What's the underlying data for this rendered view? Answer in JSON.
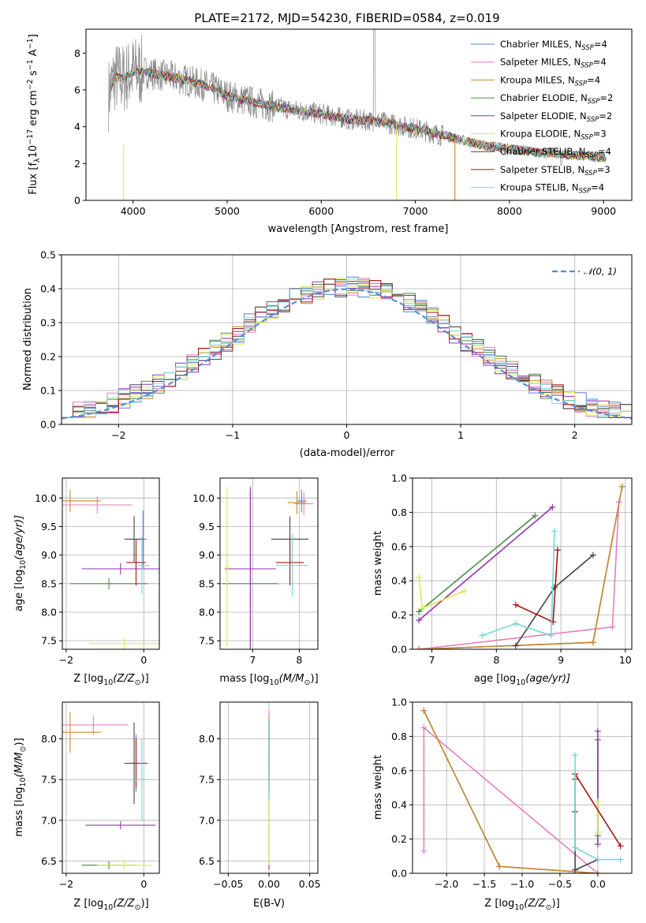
{
  "figure": {
    "title": "PLATE=2172, MJD=54230, FIBERID=0584, z=0.019"
  },
  "colors": {
    "Chabrier MILES": "#5b7fd9",
    "Salpeter MILES": "#e37fbf",
    "Kroupa MILES": "#c98a2a",
    "Chabrier ELODIE": "#4f8a4f",
    "Salpeter ELODIE": "#9a2fb5",
    "Kroupa ELODIE": "#d8ea4a",
    "Chabrier STELIB": "#454545",
    "Salpeter STELIB": "#a81414",
    "Kroupa STELIB": "#76d7db",
    "data": "#888888",
    "gauss": "#5b8bd9"
  },
  "chart_data": [
    {
      "id": "spectrum",
      "type": "line",
      "xlabel": "wavelength [Angstrom, rest frame]",
      "ylabel": "Flux [f",
      "ylabel_sub": "λ",
      "ylabel_rest": "10",
      "ylabel_sup": "−17",
      "ylabel_tail": " erg cm",
      "ylabel_sup2": "−2",
      "ylabel_mid": " s",
      "ylabel_sup3": "−1",
      "ylabel_end": " A",
      "ylabel_sup4": "−1",
      "ylabel_close": "]",
      "xlim": [
        3500,
        9300
      ],
      "ylim": [
        0,
        9.3
      ],
      "xticks": [
        4000,
        5000,
        6000,
        7000,
        8000,
        9000
      ],
      "yticks": [
        0,
        2,
        4,
        6,
        8
      ],
      "grid": false,
      "legend_position": "top-right",
      "continuum_x": [
        3750,
        3800,
        3900,
        4000,
        4100,
        4300,
        4500,
        4800,
        5000,
        5300,
        5600,
        6000,
        6300,
        6600,
        7000,
        7400,
        7700,
        8000,
        8300,
        8600,
        8800,
        9000
      ],
      "continuum_y": [
        5.9,
        6.7,
        6.6,
        7.0,
        7.0,
        6.8,
        6.6,
        6.2,
        5.7,
        5.3,
        5.0,
        4.7,
        4.4,
        4.3,
        3.9,
        3.4,
        3.0,
        2.8,
        2.6,
        2.5,
        2.4,
        2.35
      ],
      "legend": [
        {
          "name": "Chabrier MILES, N",
          "sub": "SSP",
          "tail": "=4"
        },
        {
          "name": "Salpeter MILES, N",
          "sub": "SSP",
          "tail": "=4"
        },
        {
          "name": "Kroupa MILES, N",
          "sub": "SSP",
          "tail": "=4"
        },
        {
          "name": "Chabrier ELODIE, N",
          "sub": "SSP",
          "tail": "=2"
        },
        {
          "name": "Salpeter ELODIE, N",
          "sub": "SSP",
          "tail": "=2"
        },
        {
          "name": "Kroupa ELODIE, N",
          "sub": "SSP",
          "tail": "=3"
        },
        {
          "name": "Chabrier STELIB, N",
          "sub": "SSP",
          "tail": "=4"
        },
        {
          "name": "Salpeter STELIB, N",
          "sub": "SSP",
          "tail": "=3"
        },
        {
          "name": "Kroupa STELIB, N",
          "sub": "SSP",
          "tail": "=4"
        }
      ]
    },
    {
      "id": "residuals",
      "type": "line",
      "xlabel": "(data-model)/error",
      "ylabel": "Normed distribution",
      "xlim": [
        -2.5,
        2.5
      ],
      "ylim": [
        0,
        0.5
      ],
      "xticks": [
        -2,
        -1,
        0,
        1,
        2
      ],
      "yticks": [
        0.0,
        0.1,
        0.2,
        0.3,
        0.4,
        0.5
      ],
      "grid": true,
      "legend_position": "top-right",
      "legend_label": "𝒩(0, 1)"
    },
    {
      "id": "age_vs_Z",
      "type": "scatter",
      "xlabel": "Z [log",
      "xlabel_sub": "10",
      "xlabel_tail": "(Z/Z",
      "xlabel_sub2": "⊙",
      "xlabel_close": ")]",
      "ylabel": "age  [log",
      "ylabel_sub": "10",
      "ylabel_tail": "(age/yr)]",
      "xlim": [
        -2.1,
        0.4
      ],
      "ylim": [
        7.35,
        10.35
      ],
      "xticks": [
        -2,
        0
      ],
      "yticks": [
        7.5,
        8.0,
        8.5,
        9.0,
        9.5,
        10.0
      ],
      "grid": true,
      "points": [
        {
          "model": "Chabrier MILES",
          "x": -0.02,
          "y": 9.28,
          "xerr": 0.1,
          "yerr": 0.5
        },
        {
          "model": "Salpeter MILES",
          "x": -1.2,
          "y": 9.88,
          "xerr": 0.9,
          "yerr": 0.15
        },
        {
          "model": "Kroupa MILES",
          "x": -1.9,
          "y": 9.95,
          "xerr": 0.8,
          "yerr": 0.2
        },
        {
          "model": "Chabrier ELODIE",
          "x": -0.9,
          "y": 8.5,
          "xerr": 1.0,
          "yerr": 0.1
        },
        {
          "model": "Salpeter ELODIE",
          "x": -0.6,
          "y": 8.76,
          "xerr": 1.0,
          "yerr": 0.1
        },
        {
          "model": "Kroupa ELODIE",
          "x": -0.5,
          "y": 7.45,
          "xerr": 0.9,
          "yerr": 0.1
        },
        {
          "model": "Chabrier STELIB",
          "x": -0.25,
          "y": 9.28,
          "xerr": 0.25,
          "yerr": 0.4
        },
        {
          "model": "Salpeter STELIB",
          "x": -0.2,
          "y": 8.87,
          "xerr": 0.25,
          "yerr": 0.4
        },
        {
          "model": "Kroupa STELIB",
          "x": -0.05,
          "y": 8.82,
          "xerr": 0.2,
          "yerr": 0.5
        }
      ]
    },
    {
      "id": "age_vs_mass",
      "type": "scatter",
      "xlabel": "mass [log",
      "xlabel_sub": "10",
      "xlabel_tail": "(M/M",
      "xlabel_sub2": "⊙",
      "xlabel_close": ")]",
      "xlim": [
        6.3,
        8.4
      ],
      "ylim": [
        7.35,
        10.35
      ],
      "xticks": [
        7,
        8
      ],
      "yticks": [
        7.5,
        8.0,
        8.5,
        9.0,
        9.5,
        10.0
      ],
      "grid": true,
      "points": [
        {
          "model": "Chabrier MILES",
          "x": 8.05,
          "y": 9.95,
          "xerr": 0.1,
          "yerr": 0.2
        },
        {
          "model": "Salpeter MILES",
          "x": 8.1,
          "y": 9.9,
          "xerr": 0.2,
          "yerr": 0.2
        },
        {
          "model": "Kroupa MILES",
          "x": 7.95,
          "y": 9.92,
          "xerr": 0.2,
          "yerr": 0.2
        },
        {
          "model": "Chabrier ELODIE",
          "x": 6.95,
          "y": 8.5,
          "xerr": 0.6,
          "yerr": 1.7
        },
        {
          "model": "Salpeter ELODIE",
          "x": 6.95,
          "y": 8.76,
          "xerr": 0.55,
          "yerr": 1.4
        },
        {
          "model": "Kroupa ELODIE",
          "x": 6.45,
          "y": 8.8,
          "xerr": 0.05,
          "yerr": 1.4
        },
        {
          "model": "Chabrier STELIB",
          "x": 7.8,
          "y": 9.28,
          "xerr": 0.4,
          "yerr": 0.4
        },
        {
          "model": "Salpeter STELIB",
          "x": 7.8,
          "y": 8.87,
          "xerr": 0.3,
          "yerr": 0.4
        },
        {
          "model": "Kroupa STELIB",
          "x": 7.85,
          "y": 8.82,
          "xerr": 0.35,
          "yerr": 0.55
        }
      ]
    },
    {
      "id": "weight_vs_age",
      "type": "line",
      "xlabel": "age  [log",
      "xlabel_sub": "10",
      "xlabel_tail": "(age/yr)]",
      "ylabel": "mass weight",
      "xlim": [
        6.7,
        10.1
      ],
      "ylim": [
        0,
        1.0
      ],
      "xticks": [
        7,
        8,
        9,
        10
      ],
      "yticks": [
        0.0,
        0.2,
        0.4,
        0.6,
        0.8,
        1.0
      ],
      "grid": true,
      "series": [
        {
          "model": "Chabrier MILES",
          "x": [
            6.8,
            9.5,
            9.95
          ],
          "y": [
            0.0,
            0.04,
            0.95
          ]
        },
        {
          "model": "Salpeter MILES",
          "x": [
            6.8,
            9.8,
            9.9
          ],
          "y": [
            0.0,
            0.13,
            0.86
          ]
        },
        {
          "model": "Kroupa MILES",
          "x": [
            6.8,
            9.5,
            9.95
          ],
          "y": [
            0.0,
            0.04,
            0.95
          ]
        },
        {
          "model": "Chabrier ELODIE",
          "x": [
            6.8,
            8.6
          ],
          "y": [
            0.22,
            0.78
          ]
        },
        {
          "model": "Salpeter ELODIE",
          "x": [
            6.8,
            8.87
          ],
          "y": [
            0.17,
            0.83
          ]
        },
        {
          "model": "Kroupa ELODIE",
          "x": [
            6.8,
            6.85,
            7.5
          ],
          "y": [
            0.42,
            0.24,
            0.34
          ]
        },
        {
          "model": "Chabrier STELIB",
          "x": [
            8.3,
            8.9,
            9.5
          ],
          "y": [
            0.02,
            0.36,
            0.55
          ]
        },
        {
          "model": "Salpeter STELIB",
          "x": [
            8.3,
            8.88,
            8.95
          ],
          "y": [
            0.26,
            0.16,
            0.58
          ]
        },
        {
          "model": "Kroupa STELIB",
          "x": [
            7.78,
            8.3,
            8.85,
            8.9
          ],
          "y": [
            0.08,
            0.15,
            0.08,
            0.69
          ]
        }
      ]
    },
    {
      "id": "mass_vs_Z",
      "type": "scatter",
      "xlabel": "Z [log",
      "xlabel_sub": "10",
      "xlabel_tail": "(Z/Z",
      "xlabel_sub2": "⊙",
      "xlabel_close": ")]",
      "ylabel": "mass [log",
      "ylabel_sub": "10",
      "ylabel_tail": "(M/M",
      "ylabel_sub2": "⊙",
      "ylabel_close": ")]",
      "xlim": [
        -2.1,
        0.4
      ],
      "ylim": [
        6.35,
        8.45
      ],
      "xticks": [
        -2,
        0
      ],
      "yticks": [
        6.5,
        7.0,
        7.5,
        8.0
      ],
      "grid": true,
      "points": [
        {
          "model": "Chabrier MILES",
          "x": -0.2,
          "y": 7.7,
          "xerr": 0.1,
          "yerr": 0.35
        },
        {
          "model": "Salpeter MILES",
          "x": -1.3,
          "y": 8.17,
          "xerr": 0.9,
          "yerr": 0.12
        },
        {
          "model": "Kroupa MILES",
          "x": -1.9,
          "y": 8.08,
          "xerr": 0.8,
          "yerr": 0.25
        },
        {
          "model": "Chabrier ELODIE",
          "x": -0.9,
          "y": 6.45,
          "xerr": 0.7,
          "yerr": 0.05
        },
        {
          "model": "Salpeter ELODIE",
          "x": -0.6,
          "y": 6.94,
          "xerr": 0.9,
          "yerr": 0.05
        },
        {
          "model": "Kroupa ELODIE",
          "x": -0.5,
          "y": 6.45,
          "xerr": 0.7,
          "yerr": 0.05
        },
        {
          "model": "Chabrier STELIB",
          "x": -0.25,
          "y": 7.7,
          "xerr": 0.2,
          "yerr": 0.5
        },
        {
          "model": "Salpeter STELIB",
          "x": -0.2,
          "y": 7.7,
          "xerr": 0.3,
          "yerr": 0.3
        },
        {
          "model": "Kroupa STELIB",
          "x": -0.05,
          "y": 7.5,
          "xerr": 0.2,
          "yerr": 0.5
        }
      ]
    },
    {
      "id": "mass_vs_ebv",
      "type": "scatter",
      "xlabel": "E(B-V)",
      "xlim": [
        -0.06,
        0.06
      ],
      "ylim": [
        6.35,
        8.45
      ],
      "xticks": [
        -0.05,
        0.0,
        0.05
      ],
      "xtick_labels": [
        "−0.05",
        "0.00",
        "0.05"
      ],
      "yticks": [
        6.5,
        7.0,
        7.5,
        8.0
      ],
      "grid": true,
      "points": [
        {
          "model": "Chabrier MILES",
          "x": 0.0,
          "y": 7.9,
          "xerr": 0.0,
          "yerr": 0.4
        },
        {
          "model": "Salpeter MILES",
          "x": 0.0,
          "y": 7.95,
          "xerr": 0.0,
          "yerr": 0.4
        },
        {
          "model": "Kroupa MILES",
          "x": 0.0,
          "y": 7.9,
          "xerr": 0.0,
          "yerr": 0.4
        },
        {
          "model": "Chabrier ELODIE",
          "x": 0.0,
          "y": 7.3,
          "xerr": 0.0,
          "yerr": 0.9
        },
        {
          "model": "Salpeter ELODIE",
          "x": 0.0,
          "y": 7.3,
          "xerr": 0.0,
          "yerr": 0.9
        },
        {
          "model": "Kroupa ELODIE",
          "x": 0.0,
          "y": 7.2,
          "xerr": 0.0,
          "yerr": 0.75
        },
        {
          "model": "Chabrier STELIB",
          "x": 0.0,
          "y": 7.8,
          "xerr": 0.0,
          "yerr": 0.45
        },
        {
          "model": "Salpeter STELIB",
          "x": 0.0,
          "y": 7.8,
          "xerr": 0.0,
          "yerr": 0.4
        },
        {
          "model": "Kroupa STELIB",
          "x": 0.0,
          "y": 7.75,
          "xerr": 0.0,
          "yerr": 0.5
        }
      ]
    },
    {
      "id": "weight_vs_Z",
      "type": "line",
      "xlabel": "Z [log",
      "xlabel_sub": "10",
      "xlabel_tail": "(Z/Z",
      "xlabel_sub2": "⊙",
      "xlabel_close": ")]",
      "ylabel": "mass weight",
      "xlim": [
        -2.45,
        0.45
      ],
      "ylim": [
        0,
        1.0
      ],
      "xticks": [
        -2.0,
        -1.5,
        -1.0,
        -0.5,
        0.0
      ],
      "xtick_labels": [
        "−2.0",
        "−1.5",
        "−1.0",
        "−0.5",
        "0.0"
      ],
      "yticks": [
        0.0,
        0.2,
        0.4,
        0.6,
        0.8,
        1.0
      ],
      "grid": true,
      "series": [
        {
          "model": "Chabrier MILES",
          "x": [
            -2.3,
            -1.3,
            0.0
          ],
          "y": [
            0.95,
            0.04,
            0.0
          ]
        },
        {
          "model": "Salpeter MILES",
          "x": [
            -2.3,
            -2.3,
            0.0
          ],
          "y": [
            0.13,
            0.85,
            0.0
          ]
        },
        {
          "model": "Kroupa MILES",
          "x": [
            -2.3,
            -1.3,
            0.0
          ],
          "y": [
            0.95,
            0.04,
            0.0
          ]
        },
        {
          "model": "Chabrier ELODIE",
          "x": [
            0.0,
            0.0
          ],
          "y": [
            0.22,
            0.78
          ]
        },
        {
          "model": "Salpeter ELODIE",
          "x": [
            0.0,
            0.0
          ],
          "y": [
            0.17,
            0.83
          ]
        },
        {
          "model": "Kroupa ELODIE",
          "x": [
            0.0,
            0.0,
            0.0
          ],
          "y": [
            0.42,
            0.24,
            0.34
          ]
        },
        {
          "model": "Chabrier STELIB",
          "x": [
            -0.3,
            -0.3,
            -0.3,
            0.0
          ],
          "y": [
            0.55,
            0.36,
            0.02,
            0.08
          ]
        },
        {
          "model": "Salpeter STELIB",
          "x": [
            -0.3,
            0.3
          ],
          "y": [
            0.58,
            0.16
          ]
        },
        {
          "model": "Kroupa STELIB",
          "x": [
            -0.3,
            -0.3,
            0.0,
            0.3
          ],
          "y": [
            0.69,
            0.15,
            0.08,
            0.08
          ]
        }
      ]
    }
  ]
}
